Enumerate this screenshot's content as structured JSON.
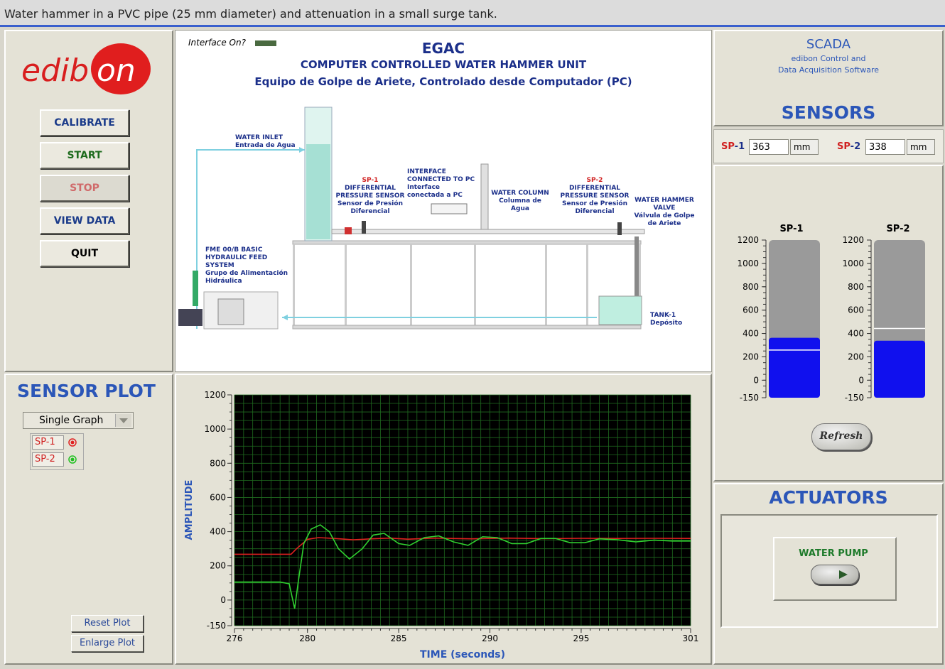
{
  "caption": "Water hammer in a PVC pipe (25 mm diameter) and attenuation in a small surge tank.",
  "logo": {
    "left": "edib",
    "right": "on"
  },
  "buttons": {
    "calibrate": "CALIBRATE",
    "start": "START",
    "stop": "STOP",
    "view_data": "VIEW DATA",
    "quit": "QUIT"
  },
  "diagram": {
    "interface_label": "Interface On?",
    "title": "EGAC",
    "subtitle_en": "COMPUTER CONTROLLED WATER HAMMER UNIT",
    "subtitle_es": "Equipo de Golpe de Ariete, Controlado desde Computador (PC)",
    "water_inlet": "WATER INLET",
    "water_inlet_es": "Entrada de Agua",
    "sp1_tag": "SP-1",
    "sp1_desc": "DIFFERENTIAL PRESSURE SENSOR",
    "sp1_desc_es": "Sensor de Presión Diferencial",
    "interface_pc": "INTERFACE CONNECTED TO PC",
    "interface_pc_es": "Interface conectada a PC",
    "water_column": "WATER COLUMN",
    "water_column_es": "Columna de Agua",
    "sp2_tag": "SP-2",
    "sp2_desc": "DIFFERENTIAL PRESSURE SENSOR",
    "sp2_desc_es": "Sensor de Presión Diferencial",
    "valve": "WATER HAMMER VALVE",
    "valve_es": "Válvula de Golpe de Ariete",
    "feed_system": "FME 00/B BASIC HYDRAULIC FEED SYSTEM",
    "feed_system_es": "Grupo de Alimentación Hidráulica",
    "tank": "TANK-1",
    "tank_es": "Depósito"
  },
  "sensor_plot": {
    "title": "SENSOR PLOT",
    "mode": "Single Graph",
    "legend": [
      {
        "label": "SP-1",
        "color": "#e02020"
      },
      {
        "label": "SP-2",
        "color": "#20c020"
      }
    ],
    "reset": "Reset Plot",
    "enlarge": "Enlarge Plot"
  },
  "chart_data": {
    "type": "line",
    "xlabel": "TIME  (seconds)",
    "ylabel": "AMPLITUDE",
    "xlim": [
      276,
      301
    ],
    "ylim": [
      -150,
      1200
    ],
    "xticks": [
      276,
      280,
      285,
      290,
      295,
      301
    ],
    "yticks": [
      1200,
      1000,
      800,
      600,
      400,
      200,
      0,
      -150
    ],
    "grid": true,
    "series": [
      {
        "name": "SP-1",
        "color": "#e02020",
        "x": [
          276,
          279.1,
          279.4,
          280.0,
          280.6,
          281.5,
          282.5,
          283.5,
          284.5,
          285.5,
          287,
          289,
          291,
          293,
          295,
          297,
          299,
          301
        ],
        "y": [
          268,
          268,
          300,
          355,
          365,
          360,
          352,
          358,
          362,
          356,
          362,
          358,
          362,
          359,
          361,
          360,
          361,
          360
        ]
      },
      {
        "name": "SP-2",
        "color": "#30d030",
        "x": [
          276,
          278.5,
          279.0,
          279.3,
          279.5,
          279.8,
          280.2,
          280.7,
          281.2,
          281.7,
          282.3,
          283.0,
          283.6,
          284.2,
          285.0,
          285.6,
          286.4,
          287.2,
          288.0,
          288.8,
          289.6,
          290.4,
          291.2,
          292.0,
          292.8,
          293.6,
          294.4,
          295.2,
          296.0,
          297.0,
          298.0,
          299.0,
          300.0,
          301.0
        ],
        "y": [
          105,
          105,
          95,
          -50,
          110,
          330,
          415,
          440,
          400,
          300,
          240,
          300,
          380,
          390,
          330,
          320,
          365,
          375,
          340,
          320,
          370,
          365,
          330,
          330,
          360,
          360,
          335,
          335,
          358,
          352,
          340,
          350,
          345,
          345
        ]
      }
    ]
  },
  "scada": {
    "title": "SCADA",
    "line1": "edibon Control and",
    "line2": "Data Acquisition Software"
  },
  "sensors": {
    "title": "SENSORS",
    "sp1_label_a": "SP",
    "sp1_label_b": "-1",
    "sp1_value": "363",
    "sp2_label_a": "SP",
    "sp2_label_b": "-2",
    "sp2_value": "338",
    "unit": "mm",
    "refresh": "Refresh",
    "gauges": [
      {
        "name": "SP-1",
        "value": 363,
        "marker": 258
      },
      {
        "name": "SP-2",
        "value": 338,
        "marker": 443
      }
    ],
    "gauge_range": [
      -150,
      1200
    ],
    "gauge_ticks": [
      1200,
      1000,
      800,
      600,
      400,
      200,
      0,
      -150
    ]
  },
  "actuators": {
    "title": "ACTUATORS",
    "pump_label": "WATER PUMP"
  }
}
